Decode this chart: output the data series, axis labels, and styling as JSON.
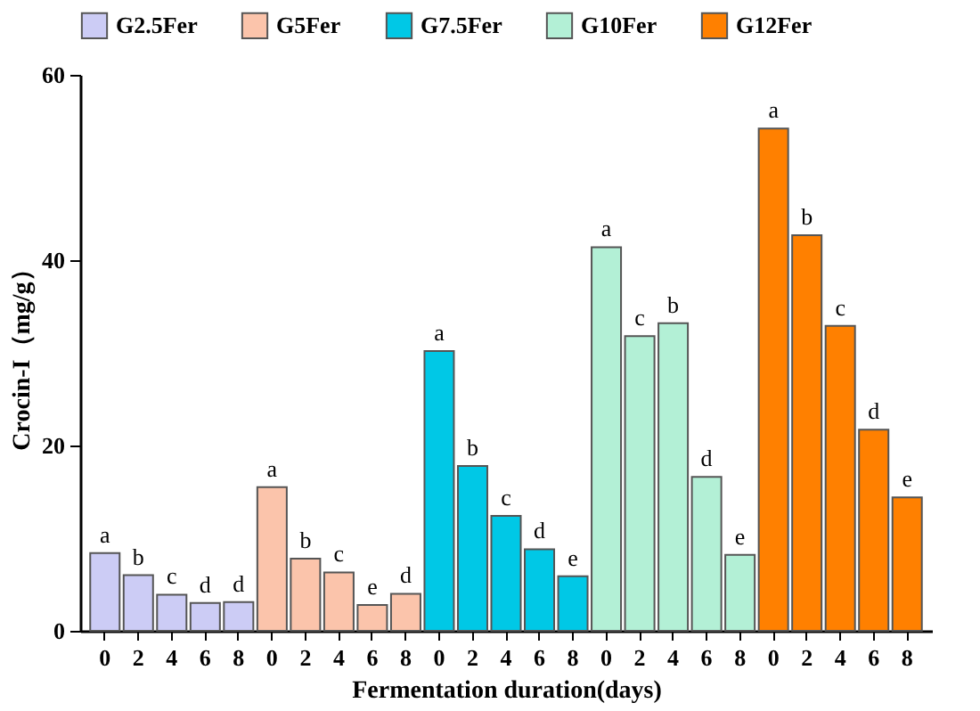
{
  "chart_data": {
    "type": "bar",
    "xlabel": "Fermentation duration(days)",
    "ylabel": "Crocin-I（mg/g）",
    "categories": [
      "0",
      "2",
      "4",
      "6",
      "8",
      "0",
      "2",
      "4",
      "6",
      "8",
      "0",
      "2",
      "4",
      "6",
      "8",
      "0",
      "2",
      "4",
      "6",
      "8",
      "0",
      "2",
      "4",
      "6",
      "8"
    ],
    "ylim": [
      0,
      60
    ],
    "yticks": [
      0,
      20,
      40,
      60
    ],
    "grid": false,
    "legend": "top",
    "series": [
      {
        "name": "G2.5Fer",
        "color": "#ccccf5",
        "values": [
          8.4,
          6.0,
          3.9,
          3.0,
          3.1,
          null,
          null,
          null,
          null,
          null,
          null,
          null,
          null,
          null,
          null,
          null,
          null,
          null,
          null,
          null,
          null,
          null,
          null,
          null,
          null
        ],
        "value_labels": [
          "a",
          "b",
          "c",
          "d",
          "d",
          null,
          null,
          null,
          null,
          null,
          null,
          null,
          null,
          null,
          null,
          null,
          null,
          null,
          null,
          null,
          null,
          null,
          null,
          null,
          null
        ]
      },
      {
        "name": "G5Fer",
        "color": "#fbc4ab",
        "values": [
          null,
          null,
          null,
          null,
          null,
          15.5,
          7.8,
          6.3,
          2.8,
          4.0,
          null,
          null,
          null,
          null,
          null,
          null,
          null,
          null,
          null,
          null,
          null,
          null,
          null,
          null,
          null
        ],
        "value_labels": [
          null,
          null,
          null,
          null,
          null,
          "a",
          "b",
          "c",
          "e",
          "d",
          null,
          null,
          null,
          null,
          null,
          null,
          null,
          null,
          null,
          null,
          null,
          null,
          null,
          null,
          null
        ]
      },
      {
        "name": "G7.5Fer",
        "color": "#00c8e6",
        "values": [
          null,
          null,
          null,
          null,
          null,
          null,
          null,
          null,
          null,
          null,
          30.2,
          17.8,
          12.4,
          8.8,
          5.9,
          null,
          null,
          null,
          null,
          null,
          null,
          null,
          null,
          null,
          null
        ],
        "value_labels": [
          null,
          null,
          null,
          null,
          null,
          null,
          null,
          null,
          null,
          null,
          "a",
          "b",
          "c",
          "d",
          "e",
          null,
          null,
          null,
          null,
          null,
          null,
          null,
          null,
          null,
          null
        ]
      },
      {
        "name": "G10Fer",
        "color": "#b3f0d6",
        "values": [
          null,
          null,
          null,
          null,
          null,
          null,
          null,
          null,
          null,
          null,
          null,
          null,
          null,
          null,
          null,
          41.4,
          31.8,
          33.2,
          16.6,
          8.2,
          null,
          null,
          null,
          null,
          null
        ],
        "value_labels": [
          null,
          null,
          null,
          null,
          null,
          null,
          null,
          null,
          null,
          null,
          null,
          null,
          null,
          null,
          null,
          "a",
          "c",
          "b",
          "d",
          "e",
          null,
          null,
          null,
          null,
          null
        ]
      },
      {
        "name": "G12Fer",
        "color": "#ff8000",
        "values": [
          null,
          null,
          null,
          null,
          null,
          null,
          null,
          null,
          null,
          null,
          null,
          null,
          null,
          null,
          null,
          null,
          null,
          null,
          null,
          null,
          54.2,
          42.7,
          32.9,
          21.7,
          14.4
        ],
        "value_labels": [
          null,
          null,
          null,
          null,
          null,
          null,
          null,
          null,
          null,
          null,
          null,
          null,
          null,
          null,
          null,
          null,
          null,
          null,
          null,
          null,
          "a",
          "b",
          "c",
          "d",
          "e"
        ]
      }
    ]
  }
}
